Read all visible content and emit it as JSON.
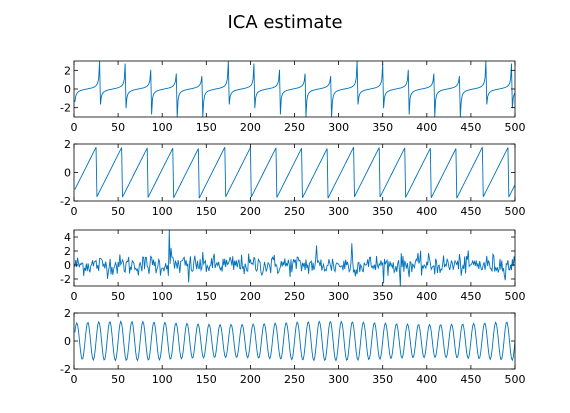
{
  "figure": {
    "title": "ICA estimate",
    "line_color": "#0072bd",
    "axis_color": "#000000",
    "background": "#ffffff"
  },
  "chart_data": [
    {
      "type": "line",
      "xlim": [
        0,
        500
      ],
      "ylim": [
        -3,
        3
      ],
      "xticks": [
        0,
        50,
        100,
        150,
        200,
        250,
        300,
        350,
        400,
        450,
        500
      ],
      "yticks": [
        -2,
        0,
        2
      ],
      "grid": false,
      "xlabel": "",
      "ylabel": "",
      "signal": {
        "shape": "tangent-like spikes",
        "period": 29.2,
        "n_points": 500,
        "peak_range": [
          -3,
          3
        ],
        "baseline": 0
      }
    },
    {
      "type": "line",
      "xlim": [
        0,
        500
      ],
      "ylim": [
        -2,
        2
      ],
      "xticks": [
        0,
        50,
        100,
        150,
        200,
        250,
        300,
        350,
        400,
        450,
        500
      ],
      "yticks": [
        -2,
        0,
        2
      ],
      "grid": false,
      "xlabel": "",
      "ylabel": "",
      "signal": {
        "shape": "sawtooth",
        "period": 29.2,
        "n_points": 500,
        "min": -1.8,
        "max": 1.8
      }
    },
    {
      "type": "line",
      "xlim": [
        0,
        500
      ],
      "ylim": [
        -3,
        5
      ],
      "xticks": [
        0,
        50,
        100,
        150,
        200,
        250,
        300,
        350,
        400,
        450,
        500
      ],
      "yticks": [
        -2,
        0,
        2,
        4
      ],
      "grid": false,
      "xlabel": "",
      "ylabel": "",
      "signal": {
        "shape": "noise",
        "n_points": 500,
        "std": 1.0,
        "notable_peaks": [
          [
            108,
            5.0
          ],
          [
            110,
            2.4
          ],
          [
            275,
            2.8
          ],
          [
            315,
            3.1
          ]
        ],
        "notable_troughs": [
          [
            130,
            -2.5
          ],
          [
            370,
            -3.0
          ]
        ]
      }
    },
    {
      "type": "line",
      "xlim": [
        0,
        500
      ],
      "ylim": [
        -2,
        2
      ],
      "xticks": [
        0,
        50,
        100,
        150,
        200,
        250,
        300,
        350,
        400,
        450,
        500
      ],
      "yticks": [
        -2,
        0,
        2
      ],
      "grid": false,
      "xlabel": "",
      "ylabel": "",
      "signal": {
        "shape": "sinusoid",
        "period": 12.5,
        "n_points": 500,
        "amplitude": 1.4
      }
    }
  ]
}
